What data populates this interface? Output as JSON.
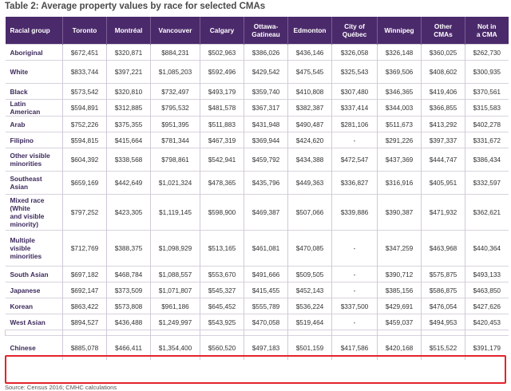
{
  "title": "Table 2: Average property values by race for selected CMAs",
  "columns": [
    "Racial group",
    "Toronto",
    "Montréal",
    "Vancouver",
    "Calgary",
    "Ottawa-\nGatineau",
    "Edmonton",
    "City of\nQuébec",
    "Winnipeg",
    "Other\nCMAs",
    "Not in\na CMA"
  ],
  "rows": [
    {
      "group": "Aboriginal",
      "values": [
        "$672,451",
        "$320,871",
        "$884,231",
        "$502,963",
        "$386,026",
        "$436,146",
        "$326,058",
        "$326,148",
        "$360,025",
        "$262,730"
      ]
    },
    {
      "group": "White",
      "values": [
        "$833,744",
        "$397,221",
        "$1,085,203",
        "$592,496",
        "$429,542",
        "$475,545",
        "$325,543",
        "$369,506",
        "$408,602",
        "$300,935"
      ]
    },
    {
      "group": "Black",
      "values": [
        "$573,542",
        "$320,810",
        "$732,497",
        "$493,179",
        "$359,740",
        "$410,808",
        "$307,480",
        "$346,365",
        "$419,406",
        "$370,561"
      ]
    },
    {
      "group": "Latin\nAmerican",
      "values": [
        "$594,891",
        "$312,885",
        "$795,532",
        "$481,578",
        "$367,317",
        "$382,387",
        "$337,414",
        "$344,003",
        "$366,855",
        "$315,583"
      ]
    },
    {
      "group": "Arab",
      "values": [
        "$752,226",
        "$375,355",
        "$951,395",
        "$511,883",
        "$431,948",
        "$490,487",
        "$281,106",
        "$511,673",
        "$413,292",
        "$402,278"
      ]
    },
    {
      "group": "Filipino",
      "values": [
        "$594,815",
        "$415,664",
        "$781,344",
        "$467,319",
        "$369,944",
        "$424,620",
        "-",
        "$291,226",
        "$397,337",
        "$331,672"
      ]
    },
    {
      "group": "Other visible\nminorities",
      "values": [
        "$604,392",
        "$338,568",
        "$798,861",
        "$542,941",
        "$459,792",
        "$434,388",
        "$472,547",
        "$437,369",
        "$444,747",
        "$386,434"
      ]
    },
    {
      "group": "Southeast\nAsian",
      "values": [
        "$659,169",
        "$442,649",
        "$1,021,324",
        "$478,365",
        "$435,796",
        "$449,363",
        "$336,827",
        "$316,916",
        "$405,951",
        "$332,597"
      ]
    },
    {
      "group": "Mixed race\n(White\nand visible\nminority)",
      "values": [
        "$797,252",
        "$423,305",
        "$1,119,145",
        "$598,900",
        "$469,387",
        "$507,066",
        "$339,886",
        "$390,387",
        "$471,932",
        "$362,621"
      ]
    },
    {
      "group": "Multiple\nvisible\nminorities",
      "values": [
        "$712,769",
        "$388,375",
        "$1,098,929",
        "$513,165",
        "$461,081",
        "$470,085",
        "-",
        "$347,259",
        "$463,968",
        "$440,364"
      ]
    },
    {
      "group": "South Asian",
      "values": [
        "$697,182",
        "$468,784",
        "$1,088,557",
        "$553,670",
        "$491,666",
        "$509,505",
        "-",
        "$390,712",
        "$575,875",
        "$493,133"
      ]
    },
    {
      "group": "Japanese",
      "values": [
        "$692,147",
        "$373,509",
        "$1,071,807",
        "$545,327",
        "$415,455",
        "$452,143",
        "-",
        "$385,156",
        "$586,875",
        "$463,850"
      ]
    },
    {
      "group": "Korean",
      "values": [
        "$863,422",
        "$573,808",
        "$961,186",
        "$645,452",
        "$555,789",
        "$536,224",
        "$337,500",
        "$429,691",
        "$476,054",
        "$427,626"
      ]
    },
    {
      "group": "West Asian",
      "values": [
        "$894,527",
        "$436,488",
        "$1,249,997",
        "$543,925",
        "$470,058",
        "$519,464",
        "-",
        "$459,037",
        "$494,953",
        "$420,453"
      ]
    },
    {
      "group": "Chinese",
      "values": [
        "$885,078",
        "$466,411",
        "$1,354,400",
        "$560,520",
        "$497,183",
        "$501,159",
        "$417,586",
        "$420,168",
        "$515,522",
        "$391,179"
      ]
    }
  ],
  "source": "Source: Census 2016; CMHC calculations",
  "colors": {
    "header_bg": "#4b2a6b",
    "highlight_border": "#e3242b"
  }
}
